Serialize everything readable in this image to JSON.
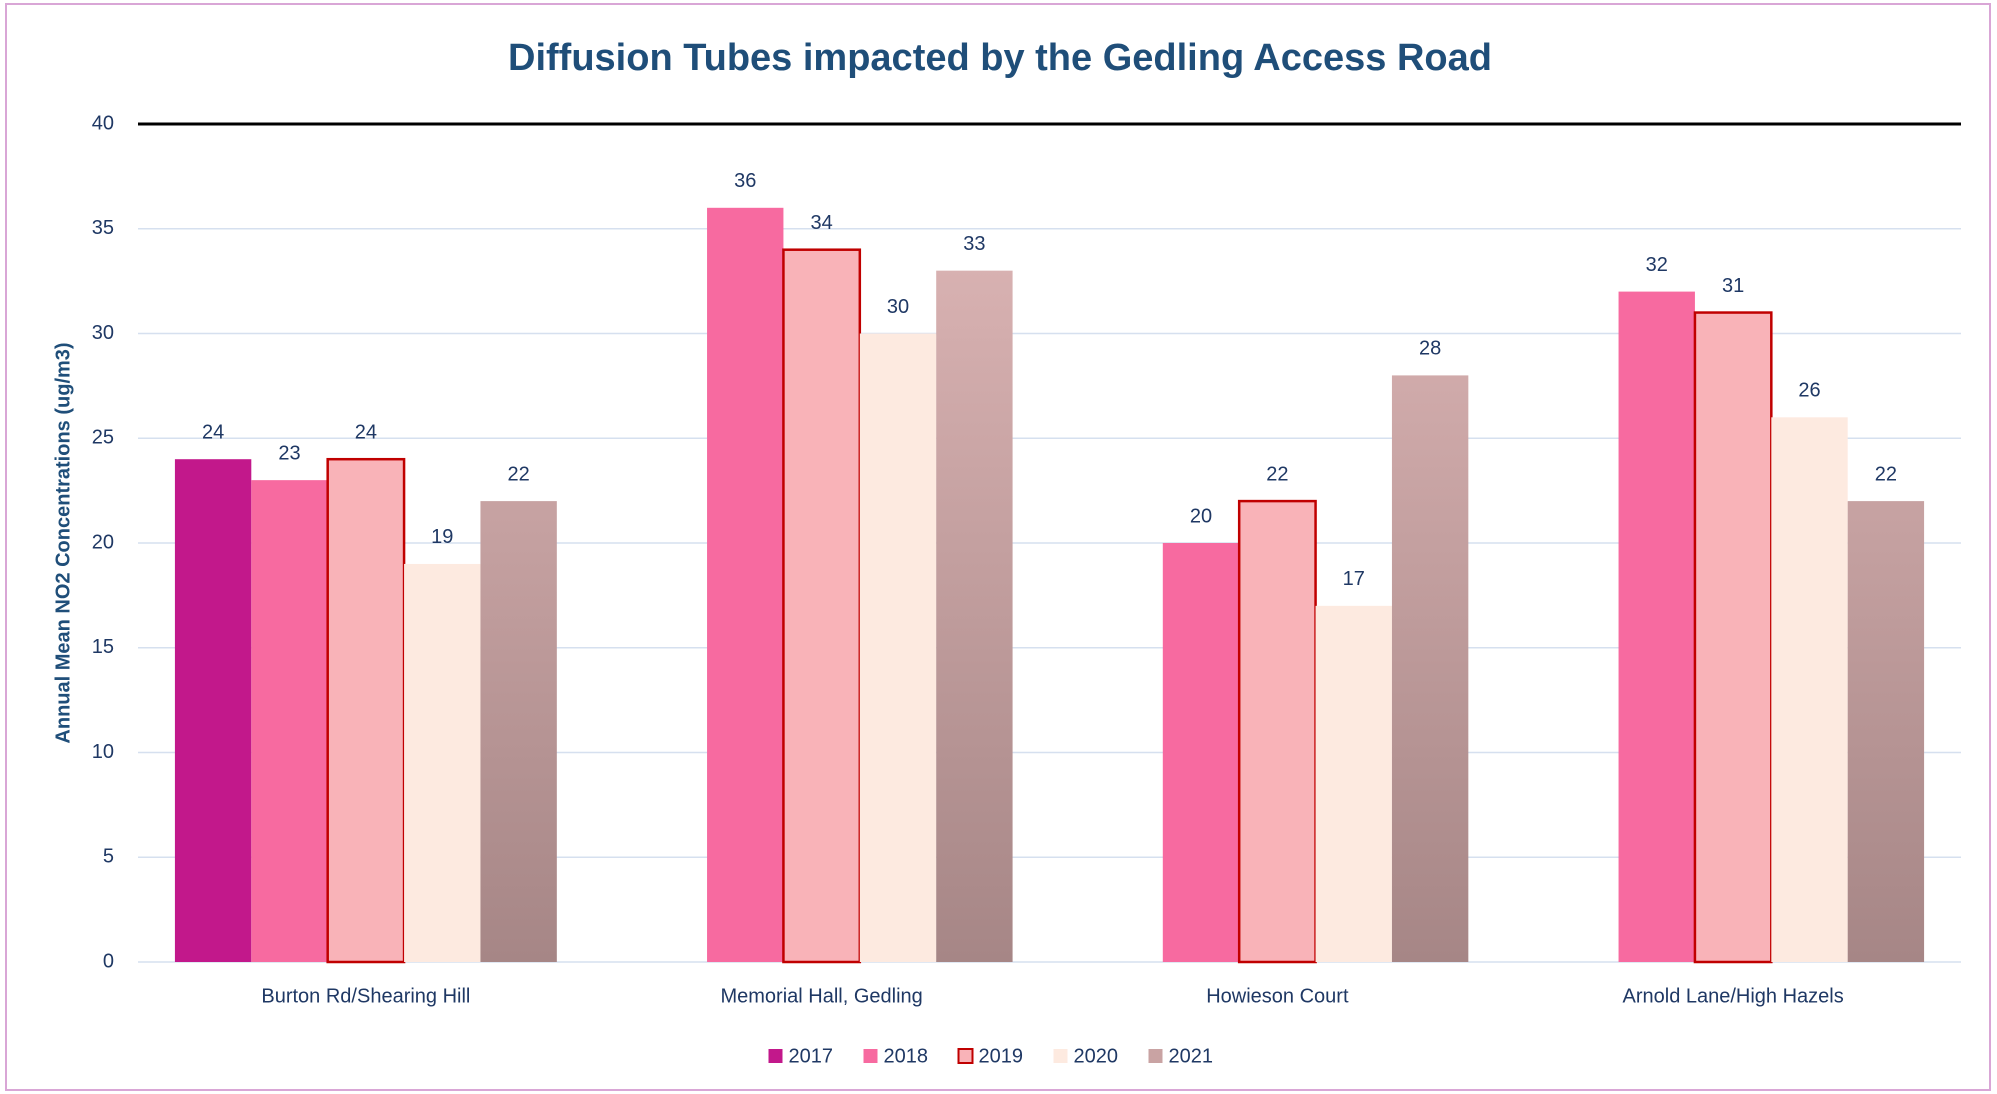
{
  "chart_data": {
    "type": "bar",
    "title": "Diffusion Tubes impacted by the Gedling Access Road",
    "ylabel": "Annual Mean NO2 Concentrations (ug/m3)",
    "categories": [
      "Burton Rd/Shearing Hill",
      "Memorial Hall, Gedling",
      "Howieson Court",
      "Arnold Lane/High Hazels"
    ],
    "series": [
      {
        "name": "2017",
        "color": "#c2188b",
        "values": [
          24,
          null,
          null,
          null
        ]
      },
      {
        "name": "2018",
        "color": "#f76aa0",
        "values": [
          23,
          36,
          20,
          32
        ]
      },
      {
        "name": "2019",
        "color": "#f9b3b8",
        "edgecolor": "#c00000",
        "values": [
          24,
          34,
          22,
          31
        ]
      },
      {
        "name": "2020",
        "color": "#fdeae0",
        "values": [
          19,
          30,
          17,
          26
        ]
      },
      {
        "name": "2021",
        "color": "#c9a3a3",
        "gradient": [
          "#e2baba",
          "#a68686"
        ],
        "values": [
          22,
          33,
          28,
          22
        ]
      }
    ],
    "ylim": [
      0,
      40
    ],
    "yticks": [
      0,
      5,
      10,
      15,
      20,
      25,
      30,
      35,
      40
    ],
    "grid": true,
    "legend": "bottom"
  }
}
